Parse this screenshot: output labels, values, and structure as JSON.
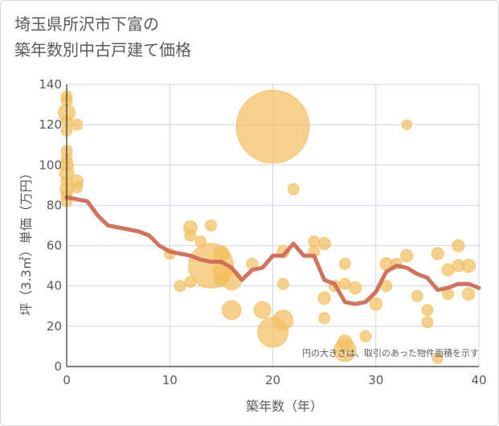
{
  "title_lines": [
    "埼玉県所沢市下富の",
    "築年数別中古戸建て価格"
  ],
  "colors": {
    "bubble": "#f3bf5e",
    "line": "#cf6c55",
    "grid": "#c9d7e4",
    "text": "#5a5a5a"
  },
  "chart_data": {
    "type": "scatter",
    "title": "埼玉県所沢市下富の築年数別中古戸建て価格",
    "xlabel": "築年数（年）",
    "ylabel": "坪（3.3㎡）単価（万円）",
    "xlim": [
      0,
      40
    ],
    "ylim": [
      0,
      140
    ],
    "xticks": [
      0,
      10,
      20,
      30,
      40
    ],
    "yticks": [
      0,
      20,
      40,
      60,
      80,
      100,
      120,
      140
    ],
    "grid": true,
    "note": "円の大きさは、取引のあった物件面積を示す",
    "points": [
      {
        "x": 0,
        "y": 134,
        "s": 1
      },
      {
        "x": 0,
        "y": 132,
        "s": 1
      },
      {
        "x": 0,
        "y": 126,
        "s": 1.5
      },
      {
        "x": 0,
        "y": 122,
        "s": 1
      },
      {
        "x": 0,
        "y": 117,
        "s": 1
      },
      {
        "x": 0,
        "y": 107,
        "s": 1
      },
      {
        "x": 0,
        "y": 103,
        "s": 1
      },
      {
        "x": 0,
        "y": 100,
        "s": 1.2
      },
      {
        "x": 0,
        "y": 96,
        "s": 1.3
      },
      {
        "x": 0,
        "y": 92,
        "s": 1
      },
      {
        "x": 0,
        "y": 88,
        "s": 1.2
      },
      {
        "x": 0,
        "y": 85,
        "s": 1
      },
      {
        "x": 0,
        "y": 82,
        "s": 1
      },
      {
        "x": 1,
        "y": 120,
        "s": 1
      },
      {
        "x": 1,
        "y": 92,
        "s": 1.1
      },
      {
        "x": 1,
        "y": 89,
        "s": 1
      },
      {
        "x": 10,
        "y": 56,
        "s": 1
      },
      {
        "x": 11,
        "y": 40,
        "s": 1
      },
      {
        "x": 12,
        "y": 69,
        "s": 1.2
      },
      {
        "x": 12,
        "y": 65,
        "s": 1
      },
      {
        "x": 12,
        "y": 42,
        "s": 1
      },
      {
        "x": 13,
        "y": 62,
        "s": 1
      },
      {
        "x": 14,
        "y": 70,
        "s": 1
      },
      {
        "x": 14,
        "y": 50,
        "s": 4
      },
      {
        "x": 15,
        "y": 56,
        "s": 1.4
      },
      {
        "x": 15,
        "y": 47,
        "s": 1.5
      },
      {
        "x": 15,
        "y": 43,
        "s": 1.2
      },
      {
        "x": 16,
        "y": 43,
        "s": 1.8
      },
      {
        "x": 16,
        "y": 28,
        "s": 1.7
      },
      {
        "x": 18,
        "y": 51,
        "s": 1
      },
      {
        "x": 19,
        "y": 28,
        "s": 1.5
      },
      {
        "x": 20,
        "y": 119,
        "s": 6.5
      },
      {
        "x": 20,
        "y": 17,
        "s": 2.7
      },
      {
        "x": 21,
        "y": 57,
        "s": 1.1
      },
      {
        "x": 21,
        "y": 41,
        "s": 1
      },
      {
        "x": 21,
        "y": 23,
        "s": 1.8
      },
      {
        "x": 22,
        "y": 88,
        "s": 1
      },
      {
        "x": 24,
        "y": 62,
        "s": 1
      },
      {
        "x": 24,
        "y": 57,
        "s": 1
      },
      {
        "x": 25,
        "y": 61,
        "s": 1.1
      },
      {
        "x": 25,
        "y": 34,
        "s": 1.1
      },
      {
        "x": 25,
        "y": 24,
        "s": 1
      },
      {
        "x": 26,
        "y": 40,
        "s": 1
      },
      {
        "x": 27,
        "y": 51,
        "s": 1
      },
      {
        "x": 27,
        "y": 41,
        "s": 1
      },
      {
        "x": 27,
        "y": 12,
        "s": 1.3
      },
      {
        "x": 27,
        "y": 8,
        "s": 2
      },
      {
        "x": 28,
        "y": 39,
        "s": 1.1
      },
      {
        "x": 29,
        "y": 15,
        "s": 1
      },
      {
        "x": 30,
        "y": 31,
        "s": 1.1
      },
      {
        "x": 31,
        "y": 51,
        "s": 1.1
      },
      {
        "x": 31,
        "y": 40,
        "s": 1
      },
      {
        "x": 32,
        "y": 51,
        "s": 1
      },
      {
        "x": 33,
        "y": 120,
        "s": 0.9
      },
      {
        "x": 33,
        "y": 55,
        "s": 1.1
      },
      {
        "x": 34,
        "y": 35,
        "s": 1
      },
      {
        "x": 35,
        "y": 28,
        "s": 1
      },
      {
        "x": 35,
        "y": 22,
        "s": 1
      },
      {
        "x": 36,
        "y": 56,
        "s": 1.1
      },
      {
        "x": 36,
        "y": 4,
        "s": 0.9
      },
      {
        "x": 37,
        "y": 48,
        "s": 1.1
      },
      {
        "x": 37,
        "y": 36,
        "s": 1
      },
      {
        "x": 38,
        "y": 60,
        "s": 1.1
      },
      {
        "x": 38,
        "y": 50,
        "s": 1.1
      },
      {
        "x": 39,
        "y": 50,
        "s": 1.2
      },
      {
        "x": 39,
        "y": 36,
        "s": 1.1
      }
    ],
    "trend_line": {
      "x": [
        0,
        1,
        2,
        3,
        4,
        5,
        6,
        7,
        8,
        9,
        10,
        11,
        12,
        13,
        14,
        15,
        16,
        17,
        18,
        19,
        20,
        21,
        22,
        23,
        24,
        25,
        26,
        27,
        28,
        29,
        30,
        31,
        32,
        33,
        34,
        35,
        36,
        37,
        38,
        39,
        40
      ],
      "y": [
        84,
        83,
        82,
        75,
        70,
        69,
        68,
        67,
        65,
        60,
        57,
        56,
        55,
        53,
        52,
        52,
        49,
        43,
        48,
        49,
        55,
        55,
        61,
        55,
        55,
        43,
        41,
        32,
        31,
        32,
        37,
        47,
        50,
        49,
        46,
        44,
        38,
        39,
        41,
        41,
        39
      ]
    }
  }
}
